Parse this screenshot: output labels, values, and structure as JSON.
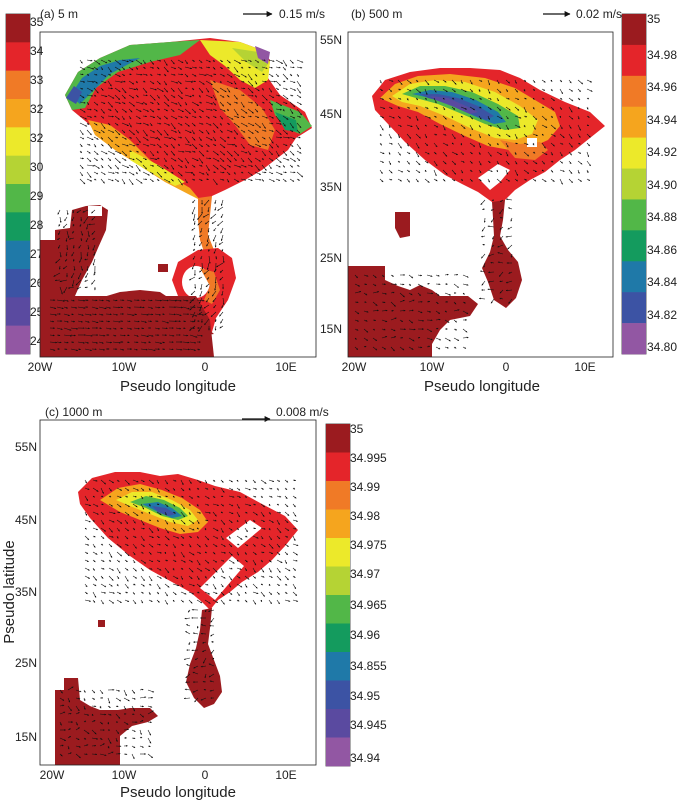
{
  "panels": [
    {
      "label": "(a) 5 m",
      "vector_ref": "0.15 m/s",
      "xlabel": "Pseudo longitude",
      "ylabel": "",
      "xticks": [
        "20W",
        "10W",
        "0",
        "10E"
      ],
      "yticks": [
        "55N",
        "45N",
        "35N",
        "25N",
        "15N"
      ],
      "colorbar": [
        "35",
        "34",
        "33",
        "32",
        "32",
        "30",
        "29",
        "28",
        "27",
        "26",
        "25",
        "24"
      ],
      "colors": [
        "#9b1b1f",
        "#e4252a",
        "#f07a26",
        "#f5a51e",
        "#ece92a",
        "#b5d334",
        "#52b748",
        "#149b5e",
        "#1f79a8",
        "#3c53a4",
        "#5a4aa0",
        "#9257a3"
      ]
    },
    {
      "label": "(b) 500 m",
      "vector_ref": "0.02 m/s",
      "xlabel": "Pseudo longitude",
      "ylabel": "",
      "xticks": [
        "20W",
        "10W",
        "0",
        "10E"
      ],
      "yticks": [],
      "colorbar": [
        "35",
        "34.98",
        "34.96",
        "34.94",
        "34.92",
        "34.90",
        "34.88",
        "34.86",
        "34.84",
        "34.82",
        "34.80"
      ],
      "colors": [
        "#9b1b1f",
        "#e4252a",
        "#f07a26",
        "#f5a51e",
        "#ece92a",
        "#b5d334",
        "#52b748",
        "#149b5e",
        "#1f79a8",
        "#3c53a4",
        "#9257a3"
      ]
    },
    {
      "label": "(c) 1000 m",
      "vector_ref": "0.008 m/s",
      "xlabel": "Pseudo longitude",
      "ylabel": "Pseudo latitude",
      "xticks": [
        "20W",
        "10W",
        "0",
        "10E"
      ],
      "yticks": [
        "55N",
        "45N",
        "35N",
        "25N",
        "15N"
      ],
      "colorbar": [
        "35",
        "34.995",
        "34.99",
        "34.98",
        "34.975",
        "34.97",
        "34.965",
        "34.96",
        "34.855",
        "34.95",
        "34.945",
        "34.94"
      ],
      "colors": [
        "#9b1b1f",
        "#e4252a",
        "#f07a26",
        "#f5a51e",
        "#ece92a",
        "#b5d334",
        "#52b748",
        "#149b5e",
        "#1f79a8",
        "#3c53a4",
        "#5a4aa0",
        "#9257a3"
      ]
    }
  ]
}
